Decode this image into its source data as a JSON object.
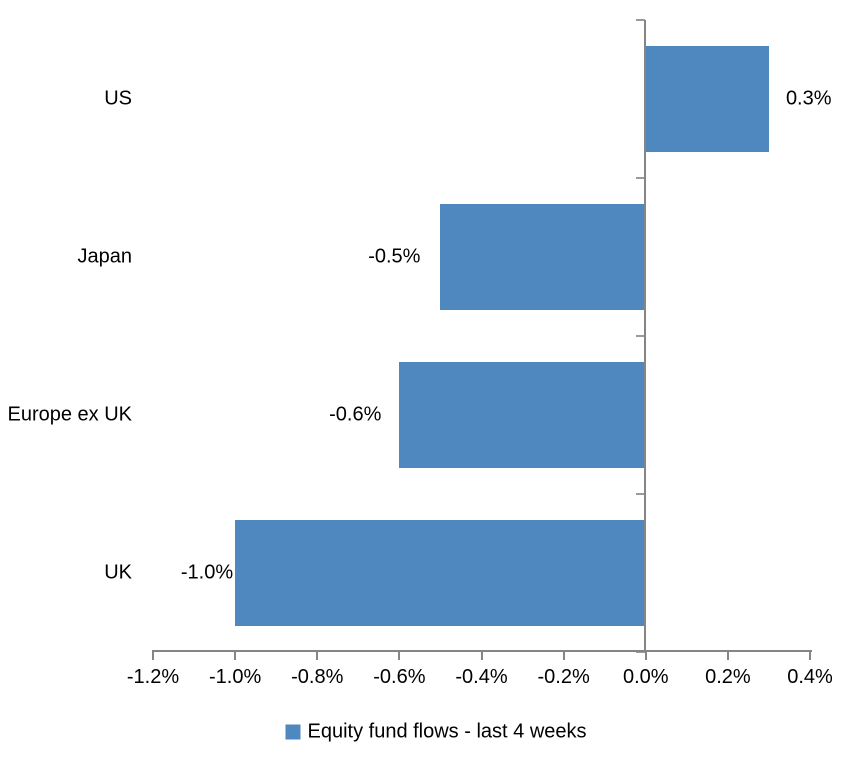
{
  "chart_data": {
    "type": "bar",
    "orientation": "horizontal",
    "title": "",
    "xlabel": "",
    "ylabel": "",
    "categories": [
      "US",
      "Japan",
      "Europe ex UK",
      "UK"
    ],
    "values": [
      0.3,
      -0.5,
      -0.6,
      -1.0
    ],
    "data_labels": [
      "0.3%",
      "-0.5%",
      "-0.6%",
      "-1.0%"
    ],
    "unit": "%",
    "xlim": [
      -1.2,
      0.4
    ],
    "x_tick_values": [
      -1.2,
      -1.0,
      -0.8,
      -0.6,
      -0.4,
      -0.2,
      0.0,
      0.2,
      0.4
    ],
    "x_tick_labels": [
      "-1.2%",
      "-1.0%",
      "-0.8%",
      "-0.6%",
      "-0.4%",
      "-0.2%",
      "0.0%",
      "0.2%",
      "0.4%"
    ],
    "grid": false,
    "legend": {
      "position": "bottom",
      "entries": [
        {
          "label": "Equity fund flows - last 4 weeks",
          "color": "#4e88be"
        }
      ]
    },
    "colors": {
      "bar": "#4e88be",
      "axis": "#858585",
      "text": "#000000",
      "background": "#ffffff"
    }
  }
}
